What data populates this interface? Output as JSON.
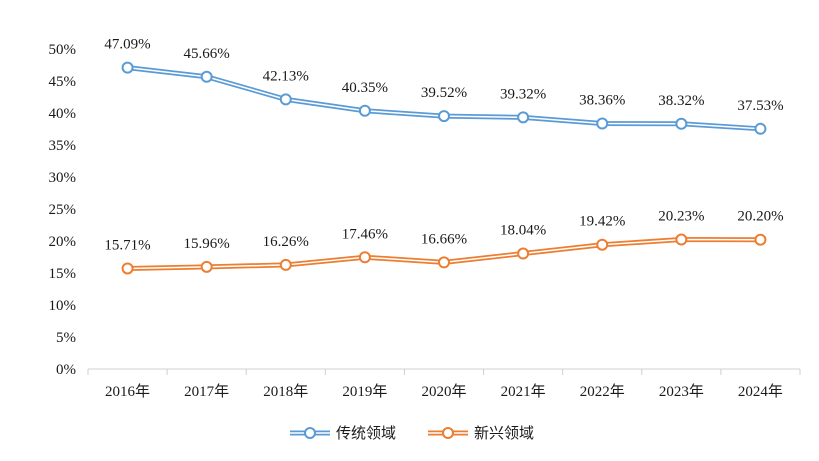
{
  "chart_data": {
    "type": "line",
    "categories": [
      "2016年",
      "2017年",
      "2018年",
      "2019年",
      "2020年",
      "2021年",
      "2022年",
      "2023年",
      "2024年"
    ],
    "series": [
      {
        "name": "传统领域",
        "values": [
          47.09,
          45.66,
          42.13,
          40.35,
          39.52,
          39.32,
          38.36,
          38.32,
          37.53
        ],
        "labels": [
          "47.09%",
          "45.66%",
          "42.13%",
          "40.35%",
          "39.52%",
          "39.32%",
          "38.36%",
          "38.32%",
          "37.53%"
        ],
        "color": "#5b9bd5"
      },
      {
        "name": "新兴领域",
        "values": [
          15.71,
          15.96,
          16.26,
          17.46,
          16.66,
          18.04,
          19.42,
          20.23,
          20.2
        ],
        "labels": [
          "15.71%",
          "15.96%",
          "16.26%",
          "17.46%",
          "16.66%",
          "18.04%",
          "19.42%",
          "20.23%",
          "20.20%"
        ],
        "color": "#ed7d31"
      }
    ],
    "y_ticks": [
      "0%",
      "5%",
      "10%",
      "15%",
      "20%",
      "25%",
      "30%",
      "35%",
      "40%",
      "45%",
      "50%"
    ],
    "ylim": [
      0,
      50
    ],
    "grid": false,
    "legend_position": "bottom"
  }
}
